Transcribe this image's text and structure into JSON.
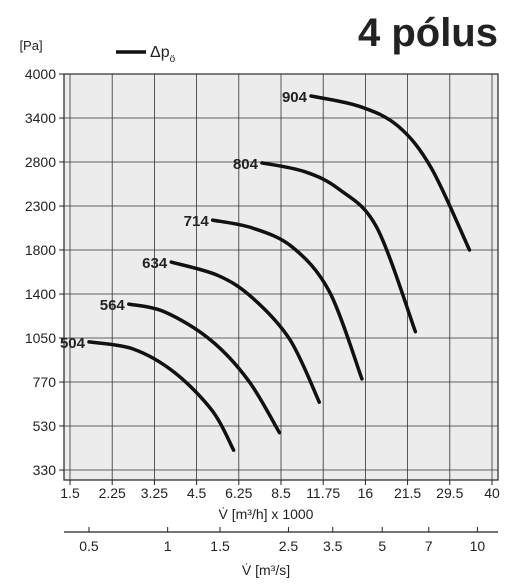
{
  "chart_data": {
    "type": "line",
    "title": "4 pólus",
    "ylabel": "[Pa]",
    "legend": {
      "symbol": "Δp",
      "subscript": "ö"
    },
    "y_ticks": [
      330,
      530,
      770,
      1050,
      1400,
      1800,
      2300,
      2800,
      3400,
      4000
    ],
    "x_ticks": [
      "1.5",
      "2.25",
      "3.25",
      "4.5",
      "6.25",
      "8.5",
      "11.75",
      "16",
      "21.5",
      "29.5",
      "40"
    ],
    "xlabel": "V̇ [m³/h] x 1000",
    "x2_ticks": [
      "0.5",
      "1",
      "1.5",
      "2.5",
      "3.5",
      "5",
      "7",
      "10"
    ],
    "x2label": "V̇ [m³/s]",
    "grid": true,
    "series": [
      {
        "name": "504",
        "points": [
          [
            1.8,
            1025
          ],
          [
            2.7,
            980
          ],
          [
            3.8,
            830
          ],
          [
            5.1,
            610
          ],
          [
            6.0,
            420
          ]
        ]
      },
      {
        "name": "564",
        "points": [
          [
            2.6,
            1320
          ],
          [
            3.5,
            1260
          ],
          [
            5.0,
            1040
          ],
          [
            6.7,
            780
          ],
          [
            8.4,
            500
          ]
        ]
      },
      {
        "name": "634",
        "points": [
          [
            3.7,
            1690
          ],
          [
            5.3,
            1570
          ],
          [
            6.9,
            1370
          ],
          [
            9.1,
            1040
          ],
          [
            11.4,
            660
          ]
        ]
      },
      {
        "name": "714",
        "points": [
          [
            5.1,
            2140
          ],
          [
            6.9,
            2050
          ],
          [
            9.3,
            1830
          ],
          [
            12.3,
            1420
          ],
          [
            15.6,
            790
          ]
        ]
      },
      {
        "name": "804",
        "points": [
          [
            7.4,
            2790
          ],
          [
            10.2,
            2690
          ],
          [
            13.2,
            2490
          ],
          [
            17.3,
            2060
          ],
          [
            22.8,
            1100
          ]
        ]
      },
      {
        "name": "904",
        "points": [
          [
            10.7,
            3700
          ],
          [
            15.3,
            3560
          ],
          [
            20.1,
            3290
          ],
          [
            25.7,
            2730
          ],
          [
            34.0,
            1800
          ]
        ]
      }
    ]
  }
}
